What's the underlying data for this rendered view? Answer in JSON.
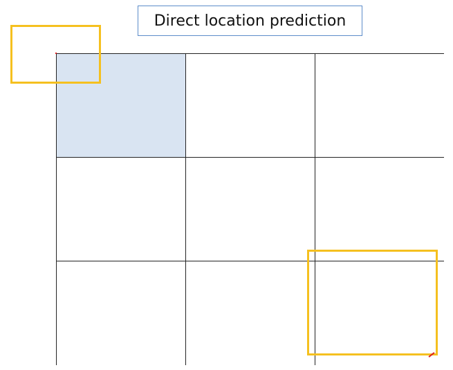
{
  "title": "Direct location prediction",
  "colors": {
    "grid_line": "#222222",
    "highlight_cell": "#d9e4f2",
    "anchor_box": "#f5c01f",
    "title_border": "#5b8bc9",
    "marker": "#dd2222"
  },
  "grid": {
    "rows": 3,
    "cols": 3,
    "highlighted_cells": [
      [
        0,
        0
      ]
    ]
  }
}
